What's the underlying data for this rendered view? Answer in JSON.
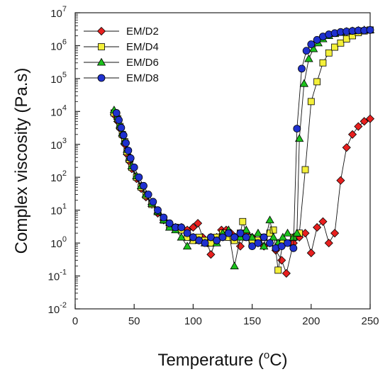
{
  "chart_data": {
    "type": "scatter",
    "title": "",
    "xlabel": "Temperature",
    "xlabel_unit_prefix": "(",
    "xlabel_unit_sup": "o",
    "xlabel_unit_suffix": "C)",
    "ylabel": "Complex viscosity (Pa.s)",
    "xlim": [
      0,
      250
    ],
    "ylim_log10": [
      -2,
      7
    ],
    "y_scale": "log",
    "grid": false,
    "legend_position": "top-left",
    "x_ticks": [
      0,
      50,
      100,
      150,
      200,
      250
    ],
    "y_ticks": [
      {
        "base": "10",
        "exp": "-2",
        "value": 0.01
      },
      {
        "base": "10",
        "exp": "-1",
        "value": 0.1
      },
      {
        "base": "10",
        "exp": "0",
        "value": 1
      },
      {
        "base": "10",
        "exp": "1",
        "value": 10
      },
      {
        "base": "10",
        "exp": "2",
        "value": 100
      },
      {
        "base": "10",
        "exp": "3",
        "value": 1000
      },
      {
        "base": "10",
        "exp": "4",
        "value": 10000
      },
      {
        "base": "10",
        "exp": "5",
        "value": 100000
      },
      {
        "base": "10",
        "exp": "6",
        "value": 1000000
      },
      {
        "base": "10",
        "exp": "7",
        "value": 10000000
      }
    ],
    "series": [
      {
        "name": "EM/D2",
        "marker": "diamond",
        "color": "#e8201f",
        "points": [
          [
            33,
            8000
          ],
          [
            36,
            5000
          ],
          [
            38,
            3000
          ],
          [
            40,
            1800
          ],
          [
            42,
            1000
          ],
          [
            44,
            500
          ],
          [
            46,
            300
          ],
          [
            48,
            180
          ],
          [
            52,
            90
          ],
          [
            56,
            45
          ],
          [
            60,
            25
          ],
          [
            65,
            15
          ],
          [
            70,
            8
          ],
          [
            75,
            5
          ],
          [
            80,
            3.5
          ],
          [
            85,
            3
          ],
          [
            90,
            3
          ],
          [
            95,
            2.5
          ],
          [
            100,
            3
          ],
          [
            104,
            4
          ],
          [
            108,
            1.5
          ],
          [
            112,
            1
          ],
          [
            115,
            0.45
          ],
          [
            120,
            1.5
          ],
          [
            124,
            2.5
          ],
          [
            128,
            2.5
          ],
          [
            132,
            2
          ],
          [
            136,
            1.5
          ],
          [
            140,
            0.8
          ],
          [
            145,
            2
          ],
          [
            150,
            1.5
          ],
          [
            155,
            1
          ],
          [
            160,
            0.8
          ],
          [
            165,
            1
          ],
          [
            170,
            0.6
          ],
          [
            175,
            0.3
          ],
          [
            179,
            0.12
          ],
          [
            185,
            1
          ],
          [
            190,
            1.5
          ],
          [
            195,
            2
          ],
          [
            200,
            0.5
          ],
          [
            205,
            3
          ],
          [
            210,
            4.5
          ],
          [
            215,
            1
          ],
          [
            220,
            2
          ],
          [
            225,
            80
          ],
          [
            230,
            800
          ],
          [
            235,
            2000
          ],
          [
            240,
            3500
          ],
          [
            245,
            5000
          ],
          [
            250,
            6000
          ]
        ]
      },
      {
        "name": "EM/D4",
        "marker": "square",
        "color": "#f4f03a",
        "points": [
          [
            33,
            9000
          ],
          [
            36,
            6000
          ],
          [
            38,
            3500
          ],
          [
            40,
            2000
          ],
          [
            42,
            1200
          ],
          [
            44,
            600
          ],
          [
            46,
            350
          ],
          [
            48,
            200
          ],
          [
            52,
            100
          ],
          [
            56,
            50
          ],
          [
            60,
            28
          ],
          [
            65,
            15
          ],
          [
            70,
            9
          ],
          [
            75,
            5
          ],
          [
            80,
            3.5
          ],
          [
            85,
            3
          ],
          [
            90,
            2.5
          ],
          [
            95,
            1.5
          ],
          [
            100,
            1.2
          ],
          [
            105,
            1.5
          ],
          [
            110,
            1.2
          ],
          [
            115,
            1
          ],
          [
            120,
            1.5
          ],
          [
            125,
            2
          ],
          [
            130,
            1.5
          ],
          [
            135,
            1.2
          ],
          [
            140,
            2
          ],
          [
            142,
            4.5
          ],
          [
            146,
            1.5
          ],
          [
            150,
            1
          ],
          [
            155,
            1.2
          ],
          [
            160,
            1.5
          ],
          [
            165,
            2
          ],
          [
            168,
            2.5
          ],
          [
            172,
            0.15
          ],
          [
            176,
            1
          ],
          [
            180,
            1
          ],
          [
            185,
            1.5
          ],
          [
            190,
            2
          ],
          [
            195,
            170
          ],
          [
            200,
            20000
          ],
          [
            205,
            80000
          ],
          [
            210,
            300000
          ],
          [
            215,
            600000
          ],
          [
            220,
            900000
          ],
          [
            225,
            1200000
          ],
          [
            230,
            1600000
          ],
          [
            235,
            2000000
          ],
          [
            240,
            2500000
          ],
          [
            245,
            2800000
          ],
          [
            250,
            3000000
          ]
        ]
      },
      {
        "name": "EM/D6",
        "marker": "triangle",
        "color": "#1cc21c",
        "points": [
          [
            33,
            11000
          ],
          [
            36,
            7000
          ],
          [
            38,
            4000
          ],
          [
            40,
            2200
          ],
          [
            42,
            1300
          ],
          [
            44,
            700
          ],
          [
            46,
            400
          ],
          [
            48,
            220
          ],
          [
            52,
            110
          ],
          [
            56,
            55
          ],
          [
            60,
            30
          ],
          [
            65,
            16
          ],
          [
            70,
            9
          ],
          [
            75,
            5
          ],
          [
            80,
            3
          ],
          [
            85,
            2.5
          ],
          [
            90,
            1.5
          ],
          [
            95,
            0.8
          ],
          [
            100,
            1.5
          ],
          [
            105,
            1.2
          ],
          [
            110,
            1
          ],
          [
            115,
            1.5
          ],
          [
            120,
            1
          ],
          [
            125,
            2
          ],
          [
            130,
            2.5
          ],
          [
            135,
            0.2
          ],
          [
            140,
            1.5
          ],
          [
            145,
            2.5
          ],
          [
            150,
            1.5
          ],
          [
            155,
            2
          ],
          [
            160,
            0.8
          ],
          [
            165,
            5
          ],
          [
            168,
            1.5
          ],
          [
            172,
            1
          ],
          [
            176,
            1.5
          ],
          [
            180,
            2
          ],
          [
            185,
            1.5
          ],
          [
            188,
            2
          ],
          [
            190,
            1500
          ],
          [
            194,
            70000
          ],
          [
            198,
            400000
          ],
          [
            202,
            800000
          ],
          [
            206,
            1200000
          ],
          [
            210,
            1600000
          ],
          [
            215,
            2000000
          ],
          [
            220,
            2300000
          ],
          [
            225,
            2500000
          ],
          [
            230,
            2700000
          ],
          [
            235,
            2800000
          ],
          [
            240,
            2900000
          ],
          [
            245,
            3000000
          ],
          [
            250,
            3000000
          ]
        ]
      },
      {
        "name": "EM/D8",
        "marker": "circle",
        "color": "#1f31cf",
        "points": [
          [
            35,
            9000
          ],
          [
            37,
            5500
          ],
          [
            39,
            3200
          ],
          [
            41,
            1900
          ],
          [
            43,
            1100
          ],
          [
            45,
            650
          ],
          [
            47,
            380
          ],
          [
            50,
            200
          ],
          [
            54,
            100
          ],
          [
            58,
            55
          ],
          [
            62,
            30
          ],
          [
            66,
            18
          ],
          [
            70,
            10
          ],
          [
            75,
            6
          ],
          [
            80,
            4
          ],
          [
            85,
            3
          ],
          [
            90,
            3
          ],
          [
            95,
            2
          ],
          [
            100,
            1.5
          ],
          [
            105,
            1.2
          ],
          [
            110,
            1
          ],
          [
            115,
            1.5
          ],
          [
            120,
            1.2
          ],
          [
            125,
            1.5
          ],
          [
            130,
            2
          ],
          [
            135,
            1.5
          ],
          [
            140,
            2
          ],
          [
            145,
            1.5
          ],
          [
            150,
            0.8
          ],
          [
            155,
            1
          ],
          [
            160,
            1.5
          ],
          [
            165,
            1
          ],
          [
            170,
            0.7
          ],
          [
            175,
            0.8
          ],
          [
            180,
            1
          ],
          [
            185,
            0.7
          ],
          [
            188,
            3000
          ],
          [
            192,
            200000
          ],
          [
            196,
            700000
          ],
          [
            200,
            1100000
          ],
          [
            205,
            1500000
          ],
          [
            210,
            1900000
          ],
          [
            215,
            2200000
          ],
          [
            220,
            2400000
          ],
          [
            225,
            2600000
          ],
          [
            230,
            2700000
          ],
          [
            235,
            2800000
          ],
          [
            240,
            2900000
          ],
          [
            245,
            2900000
          ],
          [
            250,
            3000000
          ]
        ]
      }
    ]
  }
}
